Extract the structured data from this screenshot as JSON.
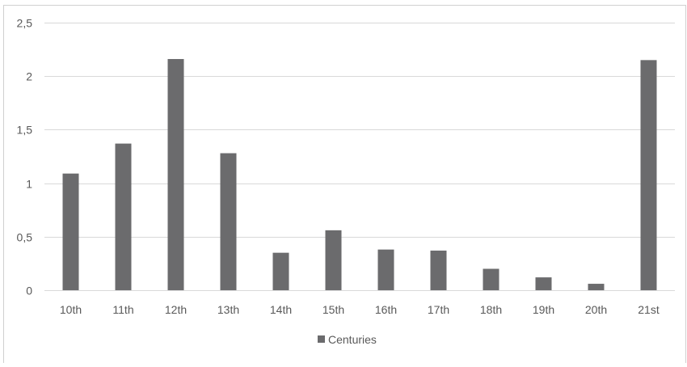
{
  "chart_data": {
    "type": "bar",
    "categories": [
      "10th",
      "11th",
      "12th",
      "13th",
      "14th",
      "15th",
      "16th",
      "17th",
      "18th",
      "19th",
      "20th",
      "21st"
    ],
    "series": [
      {
        "name": "Centuries",
        "values": [
          1.09,
          1.37,
          2.16,
          1.28,
          0.35,
          0.56,
          0.38,
          0.37,
          0.2,
          0.12,
          0.06,
          2.15
        ]
      }
    ],
    "title": "",
    "xlabel": "",
    "ylabel": "",
    "ylim": [
      0,
      2.5
    ],
    "yticks": [
      {
        "value": 0,
        "label": "0"
      },
      {
        "value": 0.5,
        "label": "0,5"
      },
      {
        "value": 1,
        "label": "1"
      },
      {
        "value": 1.5,
        "label": "1,5"
      },
      {
        "value": 2,
        "label": "2"
      },
      {
        "value": 2.5,
        "label": "2,5"
      }
    ],
    "grid": true,
    "legend": "bottom",
    "colors": {
      "bar": "#6b6b6d",
      "grid": "#d9d9d9",
      "axis_text": "#595959",
      "frame": "#d0d0d0"
    }
  }
}
